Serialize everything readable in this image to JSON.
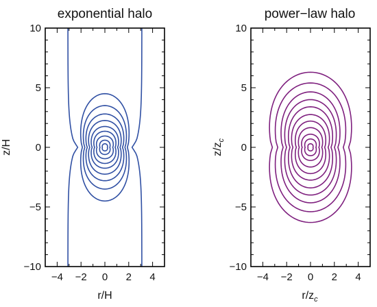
{
  "chart_data": [
    {
      "type": "contour",
      "title": "exponential halo",
      "xlabel": "r/H",
      "ylabel": "z/H",
      "xlim": [
        -5,
        5
      ],
      "ylim": [
        -10,
        10
      ],
      "xticks": [
        -4,
        -2,
        0,
        2,
        4
      ],
      "yticks": [
        -10,
        -5,
        0,
        5,
        10
      ],
      "xtick_labels": [
        "−4",
        "−2",
        "0",
        "2",
        "4"
      ],
      "ytick_labels": [
        "−10",
        "−5",
        "0",
        "5",
        "10"
      ],
      "color": "#2f4fa3",
      "closed_contours": [
        {
          "r_max": 0.25,
          "z_max": 0.3
        },
        {
          "r_max": 0.5,
          "z_max": 0.6
        },
        {
          "r_max": 0.8,
          "z_max": 0.95
        },
        {
          "r_max": 1.05,
          "z_max": 1.35
        },
        {
          "r_max": 1.3,
          "z_max": 1.75
        },
        {
          "r_max": 1.55,
          "z_max": 2.25
        },
        {
          "r_max": 1.8,
          "z_max": 2.8
        },
        {
          "r_max": 2.05,
          "z_max": 3.5
        },
        {
          "r_max": 2.3,
          "z_max": 4.5
        }
      ],
      "open_contour": {
        "r_at_z0": 2.45,
        "r_at_zmax": 3.1,
        "note_r_waist_to_edge": true
      }
    },
    {
      "type": "contour",
      "title": "power−law halo",
      "xlabel": "r/z",
      "xlabel_sub": "c",
      "ylabel": "z/z",
      "ylabel_sub": "c",
      "xlim": [
        -5,
        5
      ],
      "ylim": [
        -10,
        10
      ],
      "xticks": [
        -4,
        -2,
        0,
        2,
        4
      ],
      "yticks": [
        -10,
        -5,
        0,
        5,
        10
      ],
      "xtick_labels": [
        "−4",
        "−2",
        "0",
        "2",
        "4"
      ],
      "ytick_labels": [
        "−10",
        "−5",
        "0",
        "5",
        "10"
      ],
      "color": "#7e1f7e",
      "closed_contours": [
        {
          "r_max": 0.25,
          "z_max": 0.3
        },
        {
          "r_max": 0.55,
          "z_max": 0.7
        },
        {
          "r_max": 0.85,
          "z_max": 1.1
        },
        {
          "r_max": 1.15,
          "z_max": 1.65
        },
        {
          "r_max": 1.45,
          "z_max": 2.2
        },
        {
          "r_max": 1.8,
          "z_max": 2.75
        },
        {
          "r_max": 2.1,
          "z_max": 3.4
        },
        {
          "r_max": 2.45,
          "z_max": 4.0
        },
        {
          "r_max": 2.8,
          "z_max": 4.65
        },
        {
          "r_max": 3.35,
          "z_max": 5.4
        },
        {
          "r_max": 3.9,
          "z_max": 6.3
        }
      ]
    }
  ]
}
